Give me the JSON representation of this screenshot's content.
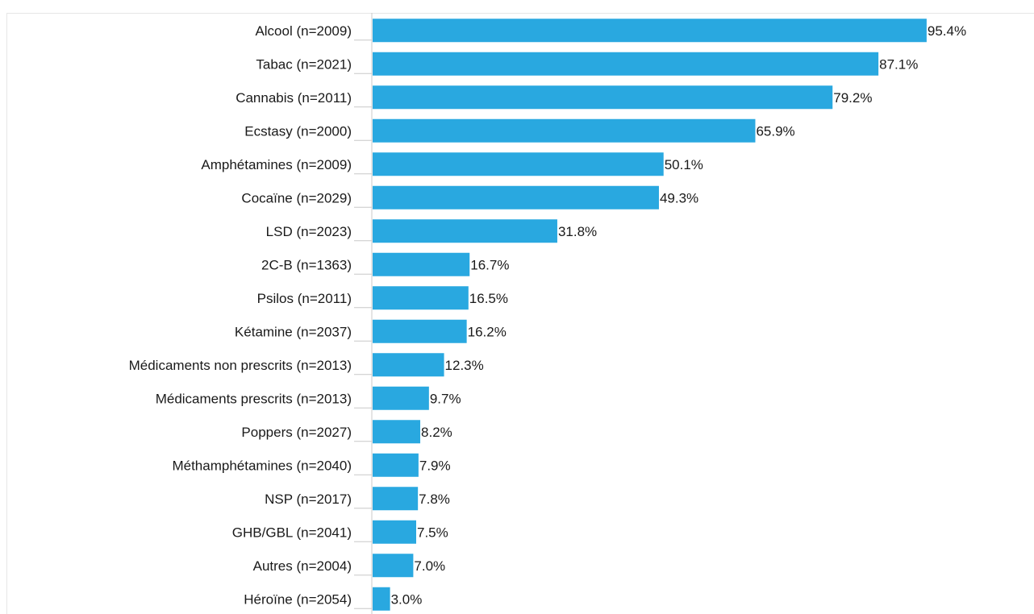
{
  "chart_data": {
    "type": "bar",
    "orientation": "horizontal",
    "categories": [
      "Alcool (n=2009)",
      "Tabac (n=2021)",
      "Cannabis (n=2011)",
      "Ecstasy (n=2000)",
      "Amphétamines (n=2009)",
      "Cocaïne (n=2029)",
      "LSD (n=2023)",
      "2C-B (n=1363)",
      "Psilos (n=2011)",
      "Kétamine (n=2037)",
      "Médicaments non prescrits (n=2013)",
      "Médicaments prescrits (n=2013)",
      "Poppers (n=2027)",
      "Méthamphétamines (n=2040)",
      "NSP (n=2017)",
      "GHB/GBL (n=2041)",
      "Autres (n=2004)",
      "Héroïne (n=2054)"
    ],
    "values": [
      95.4,
      87.1,
      79.2,
      65.9,
      50.1,
      49.3,
      31.8,
      16.7,
      16.5,
      16.2,
      12.3,
      9.7,
      8.2,
      7.9,
      7.8,
      7.5,
      7.0,
      3.0
    ],
    "value_labels": [
      "95.4%",
      "87.1%",
      "79.2%",
      "65.9%",
      "50.1%",
      "49.3%",
      "31.8%",
      "16.7%",
      "16.5%",
      "16.2%",
      "12.3%",
      "9.7%",
      "8.2%",
      "7.9%",
      "7.8%",
      "7.5%",
      "7.0%",
      "3.0%"
    ],
    "xlim": [
      0,
      100
    ],
    "bar_color": "#29a8e0",
    "axis_color": "#c8c8c8",
    "grid": false,
    "legend": "none"
  }
}
